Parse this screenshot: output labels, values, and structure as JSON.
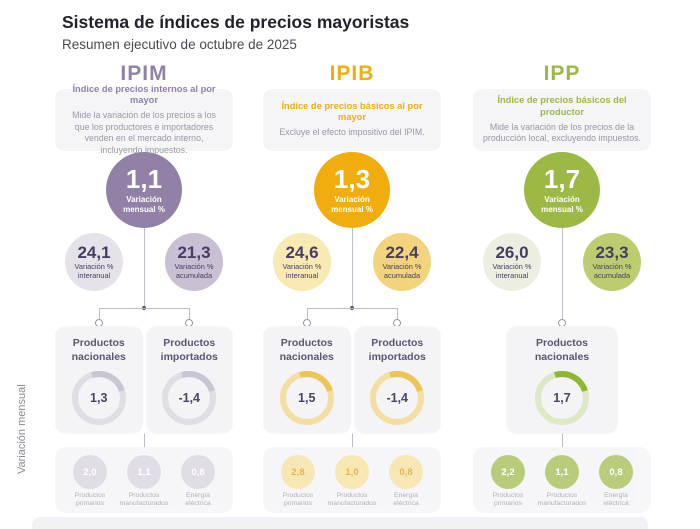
{
  "page": {
    "title": "Sistema de índices de precios mayoristas",
    "subtitle": "Resumen ejecutivo de octubre de 2025",
    "side_label": "Variación mensual"
  },
  "columns": [
    {
      "name": "IPIM",
      "full_name": "Índice de precios internos al por mayor",
      "description": "Mide la variación de los precios a los que los productores e importadores venden en el mercado interno, incluyendo impuestos.",
      "accent": "#9181a6",
      "monthly": {
        "value": "1,1",
        "label": "Variación mensual %"
      },
      "interannual": {
        "value": "24,1",
        "label": "Variación % interanual"
      },
      "accumulated": {
        "value": "21,3",
        "label": "Variación % acumulada"
      },
      "national": {
        "label": "Productos nacionales",
        "value": "1,3"
      },
      "imported": {
        "label": "Productos importados",
        "value": "-1,4"
      },
      "breakdown": [
        {
          "label": "Productos primarios",
          "value": "2,0"
        },
        {
          "label": "Productos manufacturados",
          "value": "1,1"
        },
        {
          "label": "Energía eléctrica",
          "value": "0,8"
        }
      ]
    },
    {
      "name": "IPIB",
      "full_name": "Índice de precios básicos al por mayor",
      "description": "Excluye el efecto impositivo del IPIM.",
      "accent": "#f0ad0d",
      "monthly": {
        "value": "1,3",
        "label": "Variación mensual %"
      },
      "interannual": {
        "value": "24,6",
        "label": "Variación % interanual"
      },
      "accumulated": {
        "value": "22,4",
        "label": "Variación % acumulada"
      },
      "national": {
        "label": "Productos nacionales",
        "value": "1,5"
      },
      "imported": {
        "label": "Productos importados",
        "value": "-1,4"
      },
      "breakdown": [
        {
          "label": "Productos primarios",
          "value": "2,8"
        },
        {
          "label": "Productos manufacturados",
          "value": "1,0"
        },
        {
          "label": "Energía eléctrica",
          "value": "0,8"
        }
      ]
    },
    {
      "name": "IPP",
      "full_name": "Índice de precios básicos del productor",
      "description": "Mide la variación de los precios de la producción local, excluyendo impuestos.",
      "accent": "#9bb944",
      "monthly": {
        "value": "1,7",
        "label": "Variación mensual %"
      },
      "interannual": {
        "value": "26,0",
        "label": "Variación % interanual"
      },
      "accumulated": {
        "value": "23,3",
        "label": "Variación % acumulada"
      },
      "national": {
        "label": "Productos nacionales",
        "value": "1,7"
      },
      "breakdown": [
        {
          "label": "Productos primarios",
          "value": "2,2"
        },
        {
          "label": "Productos manufacturados",
          "value": "1,1"
        },
        {
          "label": "Energía eléctrica",
          "value": "0,8"
        }
      ]
    }
  ]
}
